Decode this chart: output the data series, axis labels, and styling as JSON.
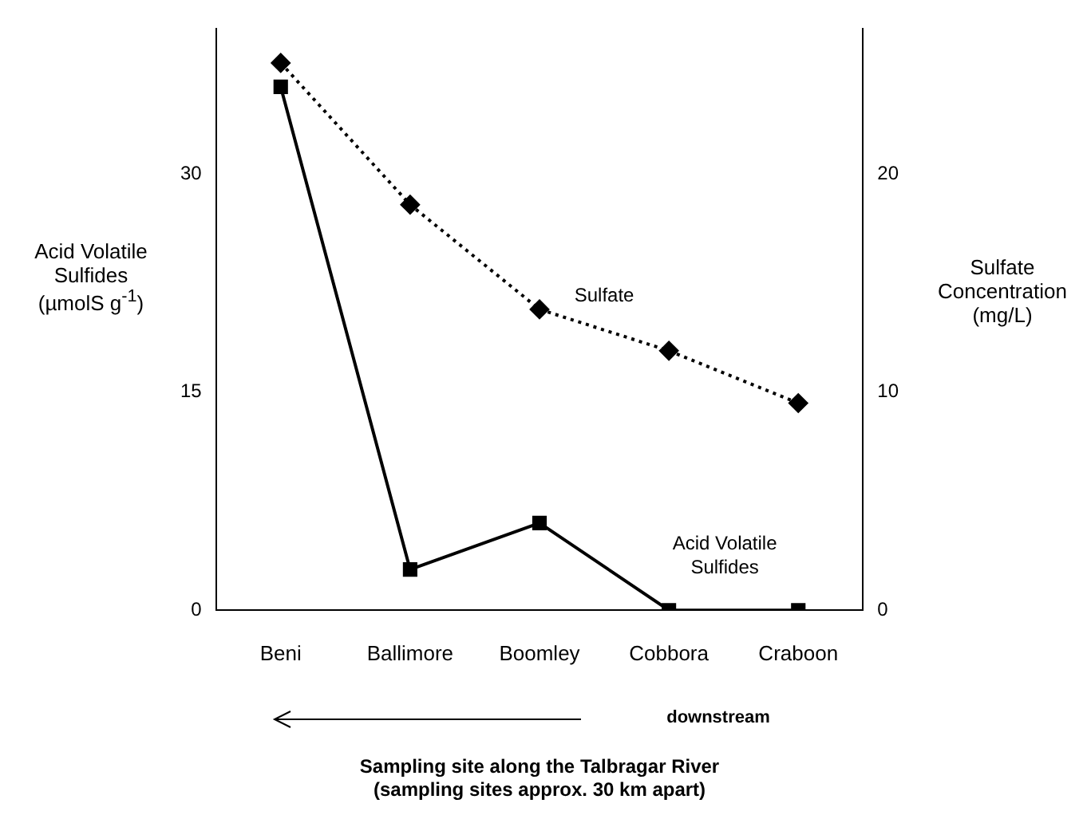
{
  "chart_data": {
    "type": "line",
    "xlabel": "Sampling site along the Talbragar River\n(sampling sites approx. 30 km apart)",
    "ylabel": "Acid Volatile Sulfides (µmolS g$^{-1}$)",
    "y2label": "Sulfate Concentration (mg/L)",
    "categories": [
      "Beni",
      "Ballimore",
      "Boomley",
      "Cobbora",
      "Craboon"
    ],
    "series": [
      {
        "name": "Sulfate",
        "color": "#000000",
        "values": [
          25.1,
          18.6,
          13.8,
          11.9,
          9.5
        ],
        "axis": "y2",
        "marker": "diamond",
        "line_style": "dotted"
      },
      {
        "name": "Acid Volatile Sulfides",
        "color": "#000000",
        "values": [
          36,
          2.8,
          6,
          0,
          0
        ],
        "marker": "square",
        "line_style": "solid"
      }
    ],
    "ylim": [
      0,
      40
    ],
    "yticks": [
      0,
      15,
      30
    ],
    "y2lim": [
      0,
      26.67
    ],
    "y2ticks": [
      0,
      10,
      20
    ],
    "grid": false,
    "legend": false,
    "annotations": [
      "downstream"
    ]
  }
}
